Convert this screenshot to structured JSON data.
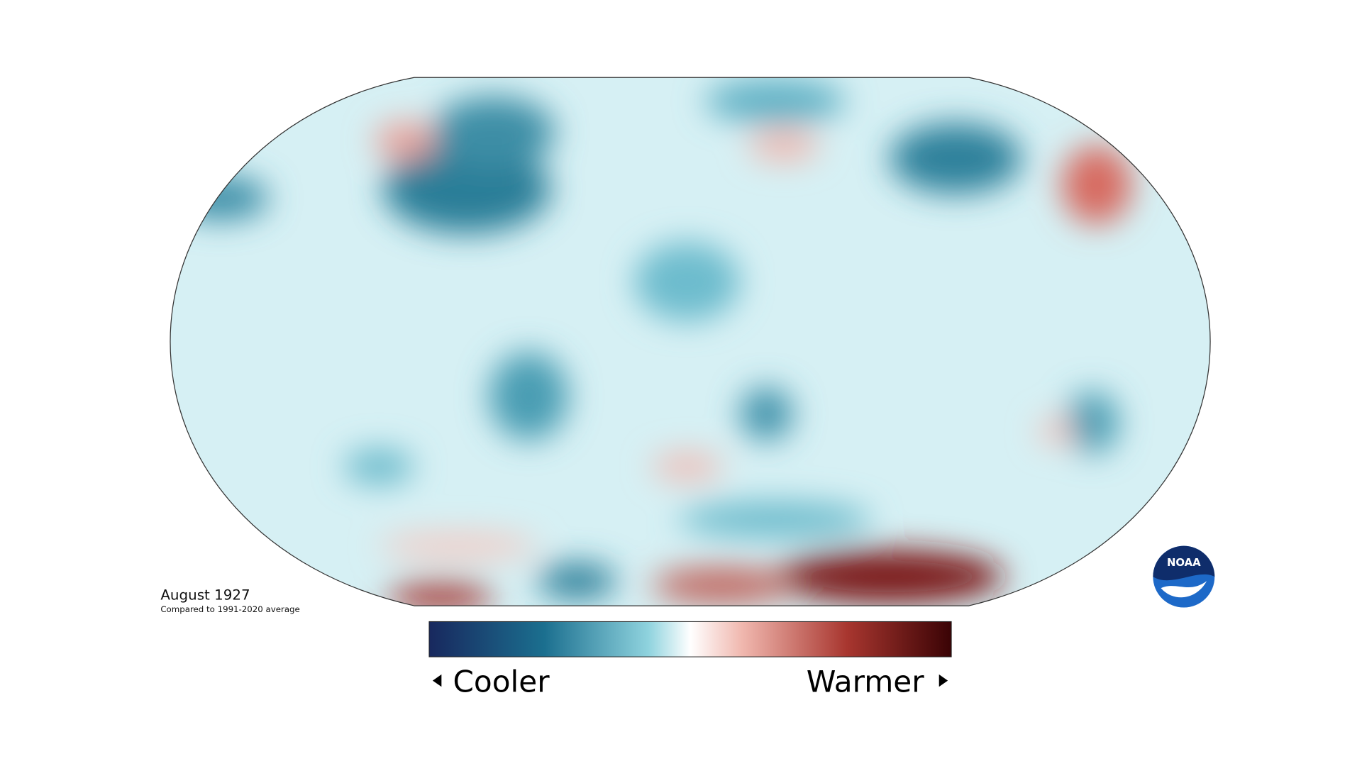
{
  "map": {
    "title": "August 1927",
    "subtitle": "Compared to 1991-2020 average"
  },
  "legend": {
    "low_label": "Cooler",
    "high_label": "Warmer"
  },
  "logo": {
    "text": "NOAA"
  }
}
